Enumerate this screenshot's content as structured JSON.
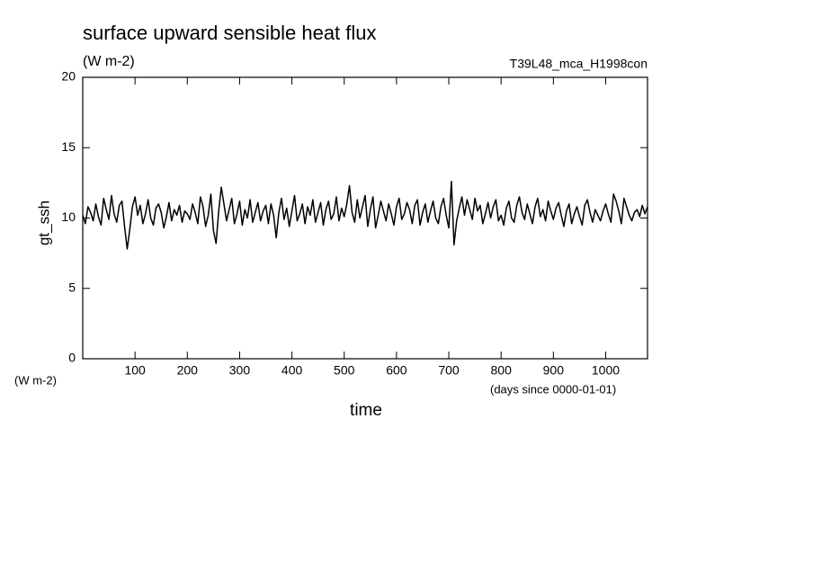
{
  "chart_data": {
    "type": "line",
    "title": "surface upward sensible heat flux",
    "subtitle": "(W m-2)",
    "annotation": "T39L48_mca_H1998con",
    "y_label": "gt_ssh",
    "y_unit": "(W m-2)",
    "x_unit": "(days since 0000-01-01)",
    "x_label": "time",
    "color": "#000000",
    "xlim": [
      0,
      1080
    ],
    "ylim": [
      0,
      20
    ],
    "xticks": [
      100,
      200,
      300,
      400,
      500,
      600,
      700,
      800,
      900,
      1000
    ],
    "yticks": [
      0,
      5,
      10,
      15,
      20
    ],
    "x": [
      0,
      5,
      10,
      15,
      20,
      25,
      30,
      35,
      40,
      45,
      50,
      55,
      60,
      65,
      70,
      75,
      80,
      85,
      90,
      95,
      100,
      105,
      110,
      115,
      120,
      125,
      130,
      135,
      140,
      145,
      150,
      155,
      160,
      165,
      170,
      175,
      180,
      185,
      190,
      195,
      200,
      205,
      210,
      215,
      220,
      225,
      230,
      235,
      240,
      245,
      250,
      255,
      260,
      265,
      270,
      275,
      280,
      285,
      290,
      295,
      300,
      305,
      310,
      315,
      320,
      325,
      330,
      335,
      340,
      345,
      350,
      355,
      360,
      365,
      370,
      375,
      380,
      385,
      390,
      395,
      400,
      405,
      410,
      415,
      420,
      425,
      430,
      435,
      440,
      445,
      450,
      455,
      460,
      465,
      470,
      475,
      480,
      485,
      490,
      495,
      500,
      505,
      510,
      515,
      520,
      525,
      530,
      535,
      540,
      545,
      550,
      555,
      560,
      565,
      570,
      575,
      580,
      585,
      590,
      595,
      600,
      605,
      610,
      615,
      620,
      625,
      630,
      635,
      640,
      645,
      650,
      655,
      660,
      665,
      670,
      675,
      680,
      685,
      690,
      695,
      700,
      705,
      710,
      715,
      720,
      725,
      730,
      735,
      740,
      745,
      750,
      755,
      760,
      765,
      770,
      775,
      780,
      785,
      790,
      795,
      800,
      805,
      810,
      815,
      820,
      825,
      830,
      835,
      840,
      845,
      850,
      855,
      860,
      865,
      870,
      875,
      880,
      885,
      890,
      895,
      900,
      905,
      910,
      915,
      920,
      925,
      930,
      935,
      940,
      945,
      950,
      955,
      960,
      965,
      970,
      975,
      980,
      985,
      990,
      995,
      1000,
      1005,
      1010,
      1015,
      1020,
      1025,
      1030,
      1035,
      1040,
      1045,
      1050,
      1055,
      1060,
      1065,
      1070,
      1075,
      1080
    ],
    "values": [
      10.2,
      9.6,
      10.8,
      10.4,
      9.8,
      11.0,
      10.1,
      9.5,
      11.4,
      10.6,
      9.9,
      11.6,
      10.3,
      9.7,
      10.9,
      11.2,
      9.4,
      7.8,
      9.2,
      10.8,
      11.5,
      10.2,
      10.9,
      9.6,
      10.3,
      11.3,
      10.0,
      9.5,
      10.7,
      11.0,
      10.4,
      9.3,
      10.1,
      11.1,
      9.8,
      10.6,
      10.2,
      10.9,
      9.7,
      10.5,
      10.3,
      9.9,
      11.0,
      10.4,
      9.6,
      11.5,
      10.8,
      9.4,
      10.2,
      11.7,
      9.1,
      8.2,
      10.5,
      12.2,
      11.0,
      9.8,
      10.6,
      11.4,
      9.6,
      10.3,
      11.2,
      9.5,
      10.6,
      10.0,
      11.3,
      9.7,
      10.4,
      11.1,
      9.8,
      10.5,
      10.9,
      9.6,
      11.0,
      10.2,
      8.6,
      10.4,
      11.4,
      9.9,
      10.7,
      9.4,
      10.5,
      11.6,
      9.8,
      10.3,
      11.0,
      9.6,
      10.8,
      10.2,
      11.3,
      9.7,
      10.4,
      11.1,
      9.5,
      10.6,
      11.2,
      9.9,
      10.3,
      11.5,
      9.8,
      10.7,
      10.1,
      11.0,
      12.3,
      10.4,
      9.7,
      11.3,
      10.0,
      10.8,
      11.6,
      9.4,
      10.6,
      11.5,
      9.3,
      10.2,
      11.2,
      10.5,
      9.8,
      11.0,
      10.3,
      9.5,
      10.8,
      11.4,
      9.9,
      10.3,
      11.1,
      10.6,
      9.6,
      10.9,
      11.3,
      9.5,
      10.4,
      11.0,
      9.7,
      10.5,
      11.2,
      10.0,
      9.6,
      10.8,
      11.4,
      10.2,
      9.3,
      12.6,
      8.1,
      9.8,
      10.7,
      11.5,
      10.2,
      11.3,
      10.6,
      9.9,
      11.4,
      10.5,
      10.9,
      9.6,
      10.3,
      11.1,
      10.0,
      10.8,
      11.3,
      9.8,
      10.2,
      9.5,
      10.7,
      11.2,
      10.0,
      9.7,
      10.9,
      11.5,
      10.4,
      9.9,
      11.0,
      10.3,
      9.6,
      10.8,
      11.4,
      10.1,
      10.6,
      9.8,
      11.2,
      10.5,
      9.9,
      10.7,
      11.1,
      10.2,
      9.4,
      10.5,
      11.0,
      9.6,
      10.3,
      10.8,
      10.1,
      9.5,
      10.9,
      11.3,
      10.4,
      9.7,
      10.6,
      10.2,
      9.8,
      10.5,
      11.0,
      10.3,
      9.7,
      11.7,
      11.2,
      10.5,
      9.6,
      11.4,
      10.8,
      10.2,
      9.8,
      10.4,
      10.6,
      10.1,
      10.9,
      10.3,
      10.8
    ]
  }
}
